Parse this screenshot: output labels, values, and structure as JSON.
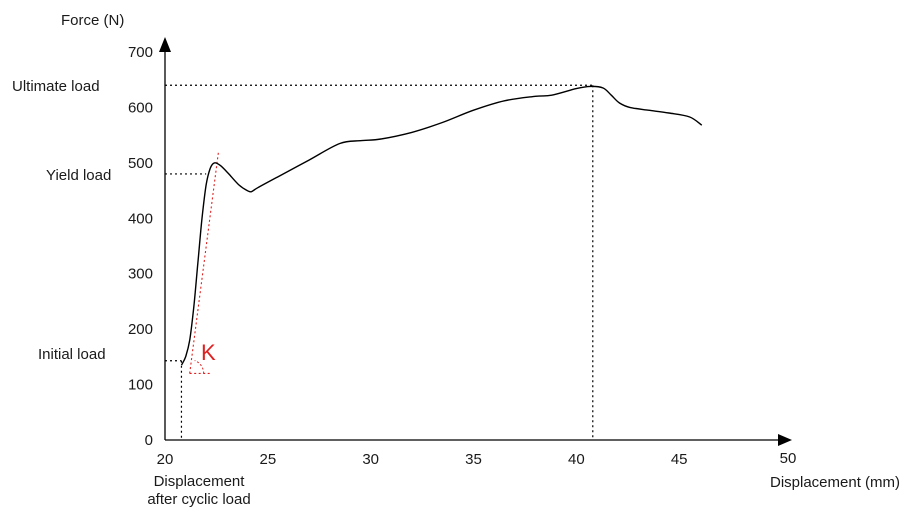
{
  "chart_data": {
    "type": "line",
    "title": "",
    "xlabel": "Displacement (mm)",
    "ylabel": "Force (N)",
    "xlim": [
      20,
      50
    ],
    "ylim": [
      0,
      700
    ],
    "x_ticks": [
      20,
      25,
      30,
      35,
      40,
      45,
      50
    ],
    "y_ticks": [
      0,
      100,
      200,
      300,
      400,
      500,
      600,
      700
    ],
    "grid": false,
    "series": [
      {
        "name": "",
        "points": [
          [
            20.8,
            135
          ],
          [
            21.0,
            150
          ],
          [
            21.2,
            180
          ],
          [
            21.4,
            240
          ],
          [
            21.6,
            320
          ],
          [
            21.8,
            400
          ],
          [
            22.0,
            460
          ],
          [
            22.2,
            490
          ],
          [
            22.4,
            500
          ],
          [
            22.7,
            495
          ],
          [
            23.1,
            480
          ],
          [
            23.6,
            460
          ],
          [
            24.0,
            450
          ],
          [
            24.2,
            448
          ],
          [
            24.5,
            455
          ],
          [
            25.5,
            475
          ],
          [
            27.0,
            505
          ],
          [
            28.5,
            535
          ],
          [
            29.5,
            540
          ],
          [
            30.5,
            543
          ],
          [
            32.0,
            555
          ],
          [
            33.5,
            573
          ],
          [
            35.0,
            595
          ],
          [
            36.5,
            612
          ],
          [
            38.0,
            620
          ],
          [
            38.8,
            622
          ],
          [
            40.0,
            634
          ],
          [
            40.7,
            638
          ],
          [
            41.3,
            635
          ],
          [
            41.7,
            622
          ],
          [
            42.1,
            608
          ],
          [
            42.6,
            600
          ],
          [
            43.5,
            595
          ],
          [
            44.5,
            590
          ],
          [
            45.5,
            583
          ],
          [
            46.1,
            568
          ]
        ]
      }
    ],
    "annotations": {
      "ultimate_load": {
        "label": "Ultimate load",
        "x": 40.8,
        "y": 640
      },
      "yield_load": {
        "label": "Yield load",
        "x": 22.0,
        "y": 480
      },
      "initial_load": {
        "label": "Initial load",
        "x": 20.8,
        "y": 143
      },
      "displacement_after_cyclic_load": {
        "label_lines": [
          "Displacement",
          "after cyclic load"
        ],
        "x": 20.8
      },
      "stiffness": {
        "label": "K",
        "tangent": [
          [
            21.2,
            120
          ],
          [
            22.6,
            520
          ]
        ],
        "base": [
          [
            21.2,
            120
          ],
          [
            22.2,
            120
          ]
        ],
        "color": "#e02020"
      }
    },
    "colors": {
      "curve": "#000000",
      "guides": "#000000",
      "tangent": "#e02020"
    }
  }
}
